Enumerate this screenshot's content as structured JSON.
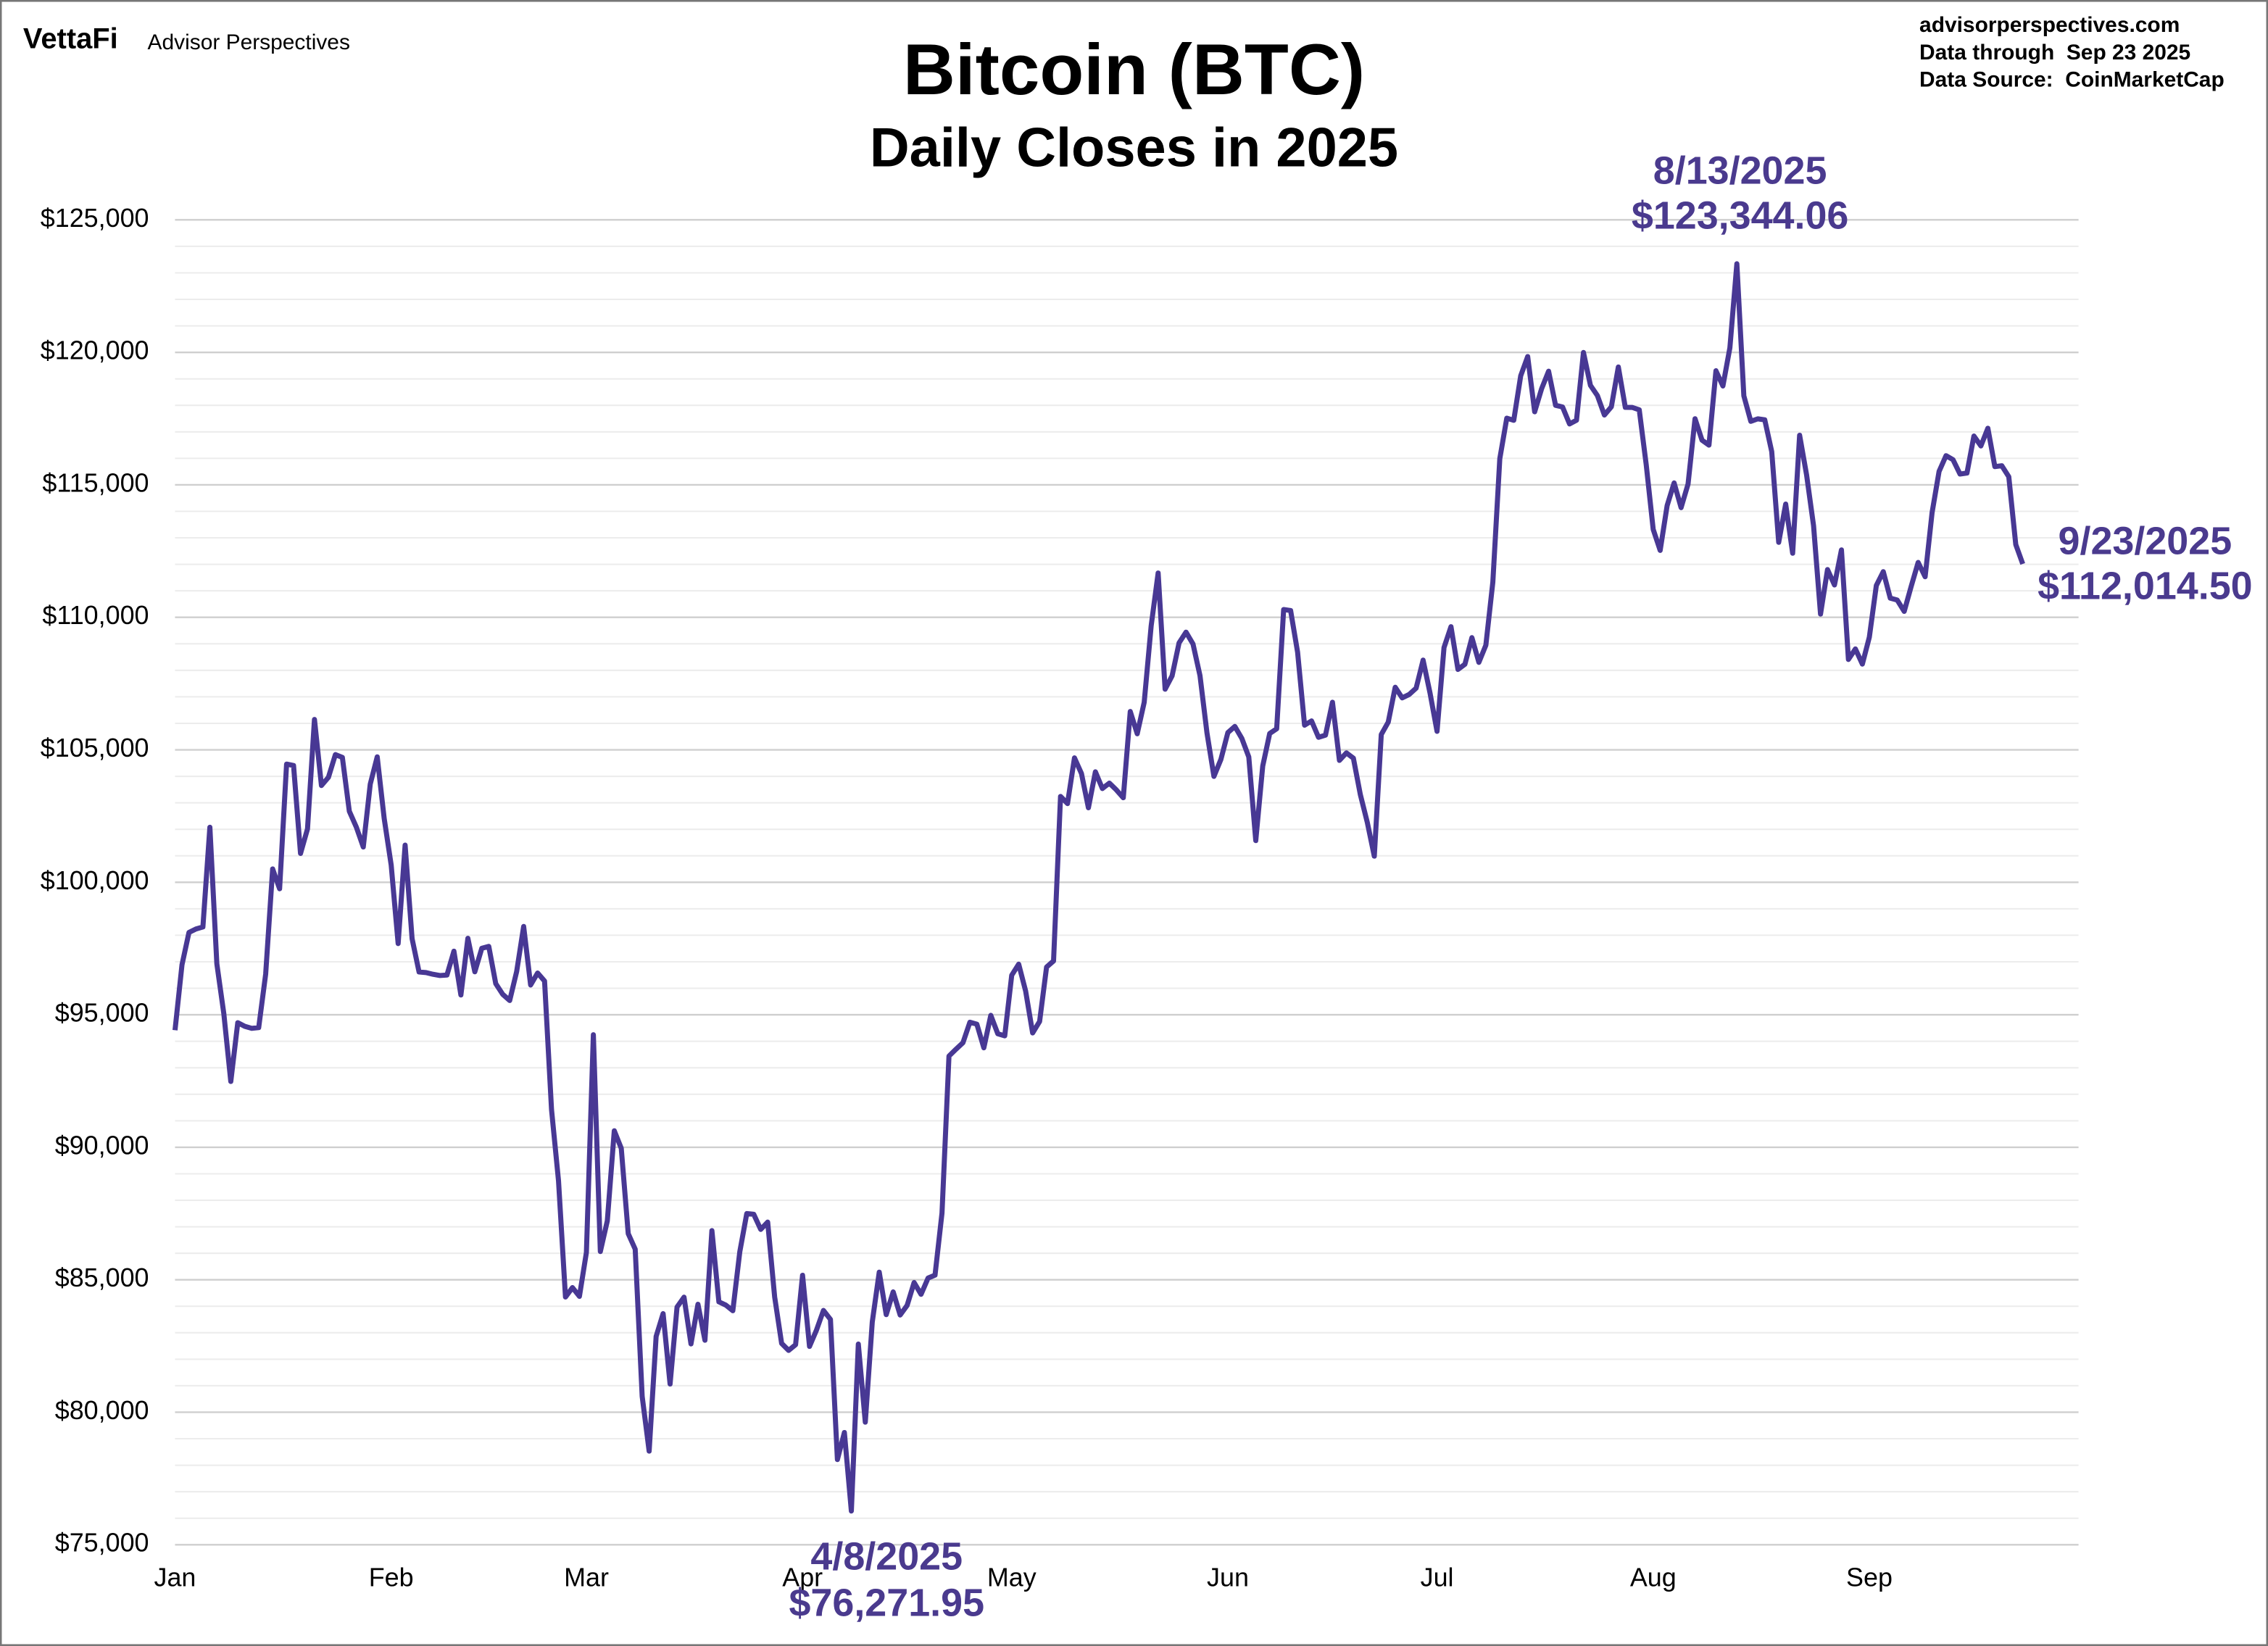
{
  "header": {
    "logo": "VettaFi",
    "brand": "Advisor Perspectives",
    "site": "advisorperspectives.com",
    "through": "Data through  Sep 23 2025",
    "source": "Data Source:  CoinMarketCap"
  },
  "chart_data": {
    "type": "line",
    "title": "Bitcoin (BTC)",
    "subtitle": "Daily Closes in 2025",
    "color": "#483894",
    "values": [
      94419,
      96886,
      98107,
      98237,
      98314,
      102078,
      96923,
      95043,
      92484,
      94701,
      94566,
      94488,
      94516,
      96534,
      100504,
      99756,
      104462,
      104408,
      101089,
      102016,
      106146,
      103653,
      103960,
      104819,
      104714,
      102682,
      102087,
      101332,
      103703,
      104735,
      102405,
      100655,
      97688,
      101405,
      97871,
      96615,
      96593,
      96529,
      96482,
      96500,
      97400,
      95747,
      97885,
      96623,
      97508,
      97580,
      96175,
      95773,
      95539,
      96635,
      98333,
      96125,
      96577,
      96273,
      91418,
      88736,
      84347,
      84704,
      84373,
      86031,
      94248,
      86065,
      87222,
      90623,
      89961,
      86742,
      86154,
      80601,
      78532,
      82862,
      83722,
      81066,
      83969,
      84343,
      82579,
      84075,
      82718,
      86854,
      84167,
      84043,
      83832,
      86054,
      87498,
      87471,
      86900,
      87177,
      84353,
      82597,
      82334,
      82548,
      85169,
      82485,
      83102,
      83843,
      83504,
      78214,
      79235,
      76271.95,
      82573,
      79626,
      83404,
      85287,
      83684,
      84542,
      83669,
      84033,
      84895,
      84450,
      85063,
      85174,
      87518,
      93442,
      93699,
      93943,
      94720,
      94646,
      93755,
      94978,
      94284,
      94207,
      96492,
      96910,
      95891,
      94315,
      94748,
      96802,
      97032,
      103241,
      102971,
      104696,
      104106,
      102812,
      104169,
      103539,
      103744,
      103489,
      103191,
      106446,
      105606,
      106791,
      109679,
      111673,
      107287,
      107791,
      109035,
      109440,
      108994,
      107802,
      105641,
      103998,
      104638,
      105652,
      105882,
      105432,
      104731,
      101575,
      104390,
      105615,
      105793,
      110294,
      110257,
      108686,
      105929,
      106090,
      105473,
      105553,
      106796,
      104602,
      104884,
      104684,
      103309,
      102257,
      100987,
      105577,
      106045,
      107361,
      106960,
      107088,
      107327,
      108385,
      107135,
      105698,
      108859,
      109647,
      108034,
      108231,
      109232,
      108300,
      108950,
      111326,
      115987,
      117516,
      117435,
      119117,
      119841,
      117758,
      118630,
      119289,
      118003,
      117939,
      117300,
      117439,
      119996,
      118755,
      118368,
      117635,
      117947,
      119448,
      117924,
      117922,
      117831,
      115758,
      113320,
      112526,
      114217,
      115072,
      114141,
      115028,
      117496,
      116688,
      116500,
      119306,
      118731,
      120172,
      123344.06,
      118359,
      117398,
      117491,
      117453,
      116252,
      112831,
      114274,
      112420,
      116874,
      115374,
      113458,
      110124,
      111802,
      111222,
      112544,
      108410,
      108808,
      108236,
      109250,
      111200,
      111723,
      110724,
      110651,
      110225,
      111167,
      112071,
      111531,
      113955,
      115507,
      116101,
      115950,
      115408,
      115444,
      116843,
      116468,
      117137,
      115688,
      115721,
      115307,
      112748,
      112014.5
    ],
    "xlim": [
      0,
      273
    ],
    "xticks": [
      {
        "value": 0,
        "label": "Jan"
      },
      {
        "value": 31,
        "label": "Feb"
      },
      {
        "value": 59,
        "label": "Mar"
      },
      {
        "value": 90,
        "label": "Apr"
      },
      {
        "value": 120,
        "label": "May"
      },
      {
        "value": 151,
        "label": "Jun"
      },
      {
        "value": 181,
        "label": "Jul"
      },
      {
        "value": 212,
        "label": "Aug"
      },
      {
        "value": 243,
        "label": "Sep"
      }
    ],
    "ylim": [
      75000,
      125000
    ],
    "yticks": [
      {
        "value": 75000,
        "label": "$75,000"
      },
      {
        "value": 80000,
        "label": "$80,000"
      },
      {
        "value": 85000,
        "label": "$85,000"
      },
      {
        "value": 90000,
        "label": "$90,000"
      },
      {
        "value": 95000,
        "label": "$95,000"
      },
      {
        "value": 100000,
        "label": "$100,000"
      },
      {
        "value": 105000,
        "label": "$105,000"
      },
      {
        "value": 110000,
        "label": "$110,000"
      },
      {
        "value": 115000,
        "label": "$115,000"
      },
      {
        "value": 120000,
        "label": "$120,000"
      },
      {
        "value": 125000,
        "label": "$125,000"
      }
    ],
    "grid": true,
    "minor_grid_step": 1000,
    "annotations": [
      {
        "date": "8/13/2025",
        "label": "$123,344.06"
      },
      {
        "date": "4/8/2025",
        "label": "$76,271.95"
      },
      {
        "date": "9/23/2025",
        "label": "$112,014.50"
      }
    ]
  }
}
